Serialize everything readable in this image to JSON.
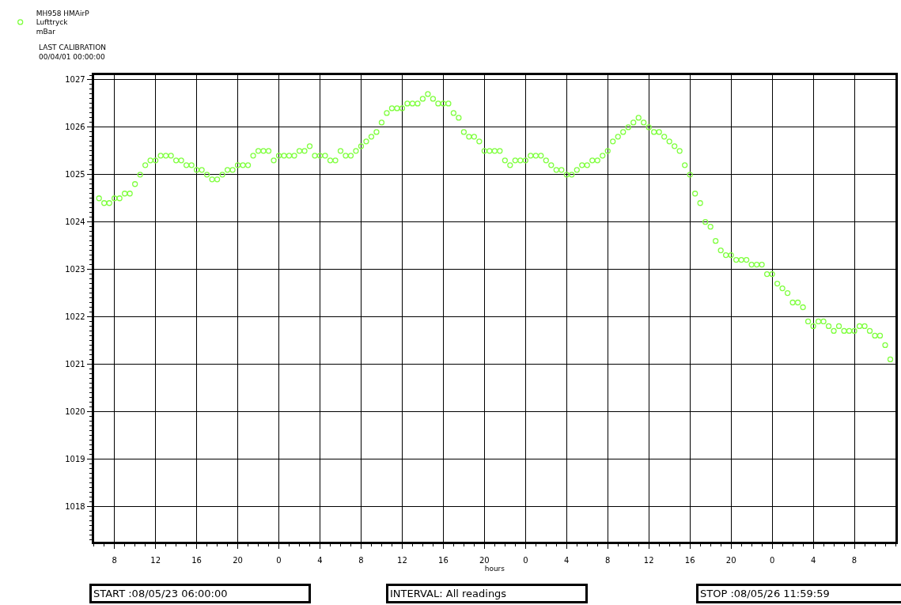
{
  "chart_data": {
    "type": "scatter",
    "xlabel": "hours",
    "marker": "circle",
    "grid": true,
    "legend": "top left",
    "annotations": [
      "LAST CALIBRATION\n00/04/01 00:00:00",
      "START :08/05/23 06:00:00",
      "INTERVAL: All readings",
      "STOP :08/05/26 11:59:59"
    ],
    "xlim": [
      "--05-23T06:00",
      "--05-26T12:00"
    ],
    "ylim": [
      1017.25,
      1027.1
    ],
    "xticks": [
      {
        "value": "--05-23T08:00",
        "label": "8"
      },
      {
        "value": "--05-23T12:00",
        "label": "12"
      },
      {
        "value": "--05-23T16:00",
        "label": "16"
      },
      {
        "value": "--05-23T20:00",
        "label": "20"
      },
      {
        "value": "--05-24T00:00",
        "label": "0"
      },
      {
        "value": "--05-24T04:00",
        "label": "4"
      },
      {
        "value": "--05-24T08:00",
        "label": "8"
      },
      {
        "value": "--05-24T12:00",
        "label": "12"
      },
      {
        "value": "--05-24T16:00",
        "label": "16"
      },
      {
        "value": "--05-24T20:00",
        "label": "20"
      },
      {
        "value": "--05-25T00:00",
        "label": "0"
      },
      {
        "value": "--05-25T04:00",
        "label": "4"
      },
      {
        "value": "--05-25T08:00",
        "label": "8"
      },
      {
        "value": "--05-25T12:00",
        "label": "12"
      },
      {
        "value": "--05-25T16:00",
        "label": "16"
      },
      {
        "value": "--05-25T20:00",
        "label": "20"
      },
      {
        "value": "--05-26T00:00",
        "label": "0"
      },
      {
        "value": "--05-26T04:00",
        "label": "4"
      },
      {
        "value": "--05-26T08:00",
        "label": "8"
      }
    ],
    "yticks": [
      1018,
      1019,
      1020,
      1021,
      1022,
      1023,
      1024,
      1025,
      1026,
      1027
    ],
    "series": [
      {
        "name": "MH958 HMAirP\nLufttryck\nmBar",
        "color": "#80ff40",
        "x": [
          "--05-23T06:30",
          "--05-23T07:00",
          "--05-23T07:30",
          "--05-23T08:00",
          "--05-23T08:30",
          "--05-23T09:00",
          "--05-23T09:30",
          "--05-23T10:00",
          "--05-23T10:30",
          "--05-23T11:00",
          "--05-23T11:30",
          "--05-23T12:00",
          "--05-23T12:30",
          "--05-23T13:00",
          "--05-23T13:30",
          "--05-23T14:00",
          "--05-23T14:30",
          "--05-23T15:00",
          "--05-23T15:30",
          "--05-23T16:00",
          "--05-23T16:30",
          "--05-23T17:00",
          "--05-23T17:30",
          "--05-23T18:00",
          "--05-23T18:30",
          "--05-23T19:00",
          "--05-23T19:30",
          "--05-23T20:00",
          "--05-23T20:30",
          "--05-23T21:00",
          "--05-23T21:30",
          "--05-23T22:00",
          "--05-23T22:30",
          "--05-23T23:00",
          "--05-23T23:30",
          "--05-24T00:00",
          "--05-24T00:30",
          "--05-24T01:00",
          "--05-24T01:30",
          "--05-24T02:00",
          "--05-24T02:30",
          "--05-24T03:00",
          "--05-24T03:30",
          "--05-24T04:00",
          "--05-24T04:30",
          "--05-24T05:00",
          "--05-24T05:30",
          "--05-24T06:00",
          "--05-24T06:30",
          "--05-24T07:00",
          "--05-24T07:30",
          "--05-24T08:00",
          "--05-24T08:30",
          "--05-24T09:00",
          "--05-24T09:30",
          "--05-24T10:00",
          "--05-24T10:30",
          "--05-24T11:00",
          "--05-24T11:30",
          "--05-24T12:00",
          "--05-24T12:30",
          "--05-24T13:00",
          "--05-24T13:30",
          "--05-24T14:00",
          "--05-24T14:30",
          "--05-24T15:00",
          "--05-24T15:30",
          "--05-24T16:00",
          "--05-24T16:30",
          "--05-24T17:00",
          "--05-24T17:30",
          "--05-24T18:00",
          "--05-24T18:30",
          "--05-24T19:00",
          "--05-24T19:30",
          "--05-24T20:00",
          "--05-24T20:30",
          "--05-24T21:00",
          "--05-24T21:30",
          "--05-24T22:00",
          "--05-24T22:30",
          "--05-24T23:00",
          "--05-24T23:30",
          "--05-25T00:00",
          "--05-25T00:30",
          "--05-25T01:00",
          "--05-25T01:30",
          "--05-25T02:00",
          "--05-25T02:30",
          "--05-25T03:00",
          "--05-25T03:30",
          "--05-25T04:00",
          "--05-25T04:30",
          "--05-25T05:00",
          "--05-25T05:30",
          "--05-25T06:00",
          "--05-25T06:30",
          "--05-25T07:00",
          "--05-25T07:30",
          "--05-25T08:00",
          "--05-25T08:30",
          "--05-25T09:00",
          "--05-25T09:30",
          "--05-25T10:00",
          "--05-25T10:30",
          "--05-25T11:00",
          "--05-25T11:30",
          "--05-25T12:00",
          "--05-25T12:30",
          "--05-25T13:00",
          "--05-25T13:30",
          "--05-25T14:00",
          "--05-25T14:30",
          "--05-25T15:00",
          "--05-25T15:30",
          "--05-25T16:00",
          "--05-25T16:30",
          "--05-25T17:00",
          "--05-25T17:30",
          "--05-25T18:00",
          "--05-25T18:30",
          "--05-25T19:00",
          "--05-25T19:30",
          "--05-25T20:00",
          "--05-25T20:30",
          "--05-25T21:00",
          "--05-25T21:30",
          "--05-25T22:00",
          "--05-25T22:30",
          "--05-25T23:00",
          "--05-25T23:30",
          "--05-26T00:00",
          "--05-26T00:30",
          "--05-26T01:00",
          "--05-26T01:30",
          "--05-26T02:00",
          "--05-26T02:30",
          "--05-26T03:00",
          "--05-26T03:30",
          "--05-26T04:00",
          "--05-26T04:30",
          "--05-26T05:00",
          "--05-26T05:30",
          "--05-26T06:00",
          "--05-26T06:30",
          "--05-26T07:00",
          "--05-26T07:30",
          "--05-26T08:00",
          "--05-26T08:30",
          "--05-26T09:00",
          "--05-26T09:30",
          "--05-26T10:00",
          "--05-26T10:30",
          "--05-26T11:00",
          "--05-26T11:30"
        ],
        "values": [
          1024.5,
          1024.4,
          1024.4,
          1024.5,
          1024.5,
          1024.6,
          1024.6,
          1024.8,
          1025.0,
          1025.2,
          1025.3,
          1025.3,
          1025.4,
          1025.4,
          1025.4,
          1025.3,
          1025.3,
          1025.2,
          1025.2,
          1025.1,
          1025.1,
          1025.0,
          1024.9,
          1024.9,
          1025.0,
          1025.1,
          1025.1,
          1025.2,
          1025.2,
          1025.2,
          1025.4,
          1025.5,
          1025.5,
          1025.5,
          1025.3,
          1025.4,
          1025.4,
          1025.4,
          1025.4,
          1025.5,
          1025.5,
          1025.6,
          1025.4,
          1025.4,
          1025.4,
          1025.3,
          1025.3,
          1025.5,
          1025.4,
          1025.4,
          1025.5,
          1025.6,
          1025.7,
          1025.8,
          1025.9,
          1026.1,
          1026.3,
          1026.4,
          1026.4,
          1026.4,
          1026.5,
          1026.5,
          1026.5,
          1026.6,
          1026.7,
          1026.6,
          1026.5,
          1026.5,
          1026.5,
          1026.3,
          1026.2,
          1025.9,
          1025.8,
          1025.8,
          1025.7,
          1025.5,
          1025.5,
          1025.5,
          1025.5,
          1025.3,
          1025.2,
          1025.3,
          1025.3,
          1025.3,
          1025.4,
          1025.4,
          1025.4,
          1025.3,
          1025.2,
          1025.1,
          1025.1,
          1025.0,
          1025.0,
          1025.1,
          1025.2,
          1025.2,
          1025.3,
          1025.3,
          1025.4,
          1025.5,
          1025.7,
          1025.8,
          1025.9,
          1026.0,
          1026.1,
          1026.2,
          1026.1,
          1026.0,
          1025.9,
          1025.9,
          1025.8,
          1025.7,
          1025.6,
          1025.5,
          1025.2,
          1025.0,
          1024.6,
          1024.4,
          1024.0,
          1023.9,
          1023.6,
          1023.4,
          1023.3,
          1023.3,
          1023.2,
          1023.2,
          1023.2,
          1023.1,
          1023.1,
          1023.1,
          1022.9,
          1022.9,
          1022.7,
          1022.6,
          1022.5,
          1022.3,
          1022.3,
          1022.2,
          1021.9,
          1021.8,
          1021.9,
          1021.9,
          1021.8,
          1021.7,
          1021.8,
          1021.7,
          1021.7,
          1021.7,
          1021.8,
          1021.8,
          1021.7,
          1021.6,
          1021.6,
          1021.4,
          1021.1
        ]
      }
    ]
  }
}
